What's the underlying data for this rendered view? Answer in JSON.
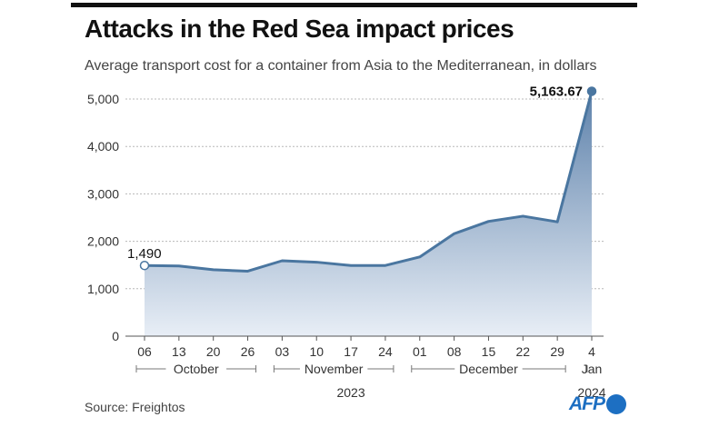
{
  "header": {
    "title": "Attacks in the Red Sea impact prices",
    "subtitle": "Average transport cost for a container from Asia to the Mediterranean, in dollars"
  },
  "footer": {
    "source": "Source: Freightos",
    "logo_text": "AFP"
  },
  "colors": {
    "line": "#4a76a0",
    "area_top": "#5e82ab",
    "area_bottom": "#e8eef6",
    "grid": "#b8b8b8",
    "text": "#1a1a1a"
  },
  "chart_data": {
    "type": "area",
    "title": "Attacks in the Red Sea impact prices",
    "subtitle": "Average transport cost for a container from Asia to the Mediterranean, in dollars",
    "xlabel": "",
    "ylabel": "",
    "ylim": [
      0,
      5000
    ],
    "yticks": [
      0,
      1000,
      2000,
      3000,
      4000,
      5000
    ],
    "ytick_labels": [
      "0",
      "1,000",
      "2,000",
      "3,000",
      "4,000",
      "5,000"
    ],
    "grid": true,
    "categories": [
      "06",
      "13",
      "20",
      "26",
      "03",
      "10",
      "17",
      "24",
      "01",
      "08",
      "15",
      "22",
      "29",
      "4"
    ],
    "values": [
      1490,
      1480,
      1400,
      1370,
      1590,
      1560,
      1490,
      1490,
      1670,
      2160,
      2420,
      2530,
      2410,
      5163.67
    ],
    "months": [
      {
        "label": "October",
        "from": 0,
        "to": 3
      },
      {
        "label": "November",
        "from": 4,
        "to": 7
      },
      {
        "label": "December",
        "from": 8,
        "to": 12
      },
      {
        "label": "Jan",
        "from": 13,
        "to": 13
      }
    ],
    "years": [
      {
        "label": "2023",
        "from": 0,
        "to": 12
      },
      {
        "label": "2024",
        "from": 13,
        "to": 13
      }
    ],
    "annotations": [
      {
        "index": 0,
        "text": "1,490"
      },
      {
        "index": 13,
        "text": "5,163.67"
      }
    ]
  }
}
